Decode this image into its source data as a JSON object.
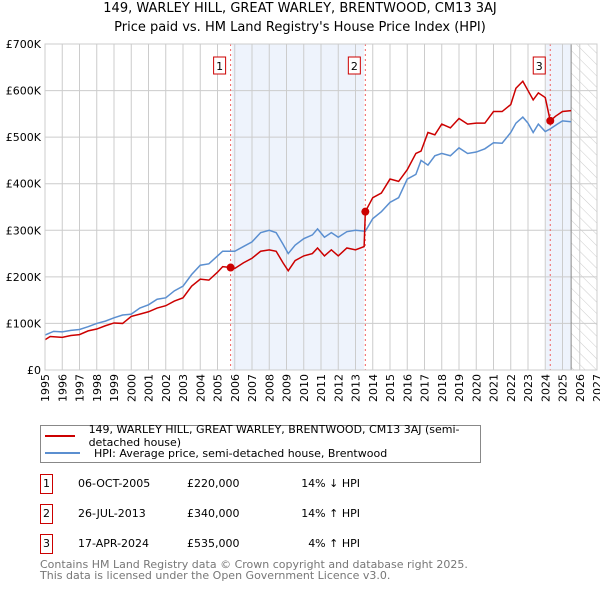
{
  "title": "149, WARLEY HILL, GREAT WARLEY, BRENTWOOD, CM13 3AJ",
  "subtitle": "Price paid vs. HM Land Registry's House Price Index (HPI)",
  "chart_data": {
    "type": "line",
    "xlim": [
      1995,
      2027
    ],
    "ylim": [
      0,
      700000
    ],
    "yticks": [
      {
        "v": 0,
        "l": "£0"
      },
      {
        "v": 100000,
        "l": "£100K"
      },
      {
        "v": 200000,
        "l": "£200K"
      },
      {
        "v": 300000,
        "l": "£300K"
      },
      {
        "v": 400000,
        "l": "£400K"
      },
      {
        "v": 500000,
        "l": "£500K"
      },
      {
        "v": 600000,
        "l": "£600K"
      },
      {
        "v": 700000,
        "l": "£700K"
      }
    ],
    "xticks": [
      "1995",
      "1996",
      "1997",
      "1998",
      "1999",
      "2000",
      "2001",
      "2002",
      "2003",
      "2004",
      "2005",
      "2006",
      "2007",
      "2008",
      "2009",
      "2010",
      "2011",
      "2012",
      "2013",
      "2014",
      "2015",
      "2016",
      "2017",
      "2018",
      "2019",
      "2020",
      "2021",
      "2022",
      "2023",
      "2024",
      "2025",
      "2026",
      "2027"
    ],
    "shaded_ranges": [
      [
        2005.85,
        2013.5
      ],
      [
        2024.05,
        2025.5
      ]
    ],
    "forecast_start": 2025.5,
    "series": [
      {
        "name": "149, WARLEY HILL, GREAT WARLEY, BRENTWOOD, CM13 3AJ (semi-detached house)",
        "color": "#cc0000",
        "x": [
          1995,
          1995.3,
          1996,
          1996.5,
          1997,
          1997.5,
          1998,
          1998.5,
          1999,
          1999.5,
          2000,
          2000.5,
          2001,
          2001.5,
          2002,
          2002.5,
          2003,
          2003.5,
          2004,
          2004.5,
          2005,
          2005.3,
          2005.76,
          2006,
          2006.5,
          2007,
          2007.5,
          2008,
          2008.4,
          2008.8,
          2009.1,
          2009.5,
          2010,
          2010.5,
          2010.8,
          2011.2,
          2011.6,
          2012,
          2012.5,
          2013,
          2013.5,
          2013.57,
          2014,
          2014.5,
          2015,
          2015.5,
          2016,
          2016.5,
          2016.8,
          2017.2,
          2017.6,
          2018,
          2018.5,
          2019,
          2019.5,
          2020,
          2020.5,
          2021,
          2021.5,
          2022,
          2022.3,
          2022.7,
          2023,
          2023.3,
          2023.6,
          2024,
          2024.29,
          2024.6,
          2025,
          2025.5
        ],
        "y": [
          65000,
          72000,
          70000,
          74000,
          76000,
          84000,
          88000,
          95000,
          101000,
          100000,
          115000,
          120000,
          125000,
          133000,
          138000,
          148000,
          155000,
          180000,
          195000,
          193000,
          210000,
          222000,
          220000,
          218000,
          230000,
          240000,
          255000,
          258000,
          255000,
          230000,
          213000,
          235000,
          245000,
          250000,
          262000,
          245000,
          258000,
          245000,
          262000,
          258000,
          265000,
          340000,
          370000,
          380000,
          410000,
          405000,
          430000,
          465000,
          470000,
          510000,
          505000,
          528000,
          520000,
          540000,
          528000,
          530000,
          530000,
          555000,
          555000,
          570000,
          605000,
          620000,
          600000,
          580000,
          595000,
          585000,
          535000,
          545000,
          555000,
          557000
        ]
      },
      {
        "name": "HPI: Average price, semi-detached house, Brentwood",
        "color": "#5b8fd0",
        "x": [
          1995,
          1995.5,
          1996,
          1996.5,
          1997,
          1997.5,
          1998,
          1998.5,
          1999,
          1999.5,
          2000,
          2000.5,
          2001,
          2001.5,
          2002,
          2002.5,
          2003,
          2003.5,
          2004,
          2004.5,
          2005,
          2005.3,
          2005.76,
          2006,
          2006.5,
          2007,
          2007.5,
          2008,
          2008.4,
          2008.8,
          2009.1,
          2009.5,
          2010,
          2010.5,
          2010.8,
          2011.2,
          2011.6,
          2012,
          2012.5,
          2013,
          2013.57,
          2014,
          2014.5,
          2015,
          2015.5,
          2016,
          2016.5,
          2016.8,
          2017.2,
          2017.6,
          2018,
          2018.5,
          2019,
          2019.5,
          2020,
          2020.5,
          2021,
          2021.5,
          2022,
          2022.3,
          2022.7,
          2023,
          2023.3,
          2023.6,
          2024,
          2024.3,
          2024.7,
          2025,
          2025.5
        ],
        "y": [
          75000,
          83000,
          82000,
          85000,
          87000,
          93000,
          100000,
          105000,
          112000,
          118000,
          120000,
          133000,
          140000,
          152000,
          155000,
          170000,
          180000,
          205000,
          225000,
          228000,
          245000,
          255000,
          255000,
          255000,
          265000,
          275000,
          295000,
          300000,
          295000,
          270000,
          250000,
          268000,
          282000,
          290000,
          303000,
          285000,
          295000,
          285000,
          297000,
          300000,
          298000,
          325000,
          340000,
          360000,
          370000,
          410000,
          420000,
          450000,
          440000,
          460000,
          465000,
          460000,
          477000,
          465000,
          468000,
          475000,
          488000,
          487000,
          510000,
          530000,
          543000,
          530000,
          510000,
          528000,
          512000,
          518000,
          528000,
          535000,
          533000
        ]
      }
    ],
    "sales": [
      {
        "label": "1",
        "date": "06-OCT-2005",
        "x": 2005.76,
        "price": "£220,000",
        "value": 220000,
        "hpi": "14% ↓ HPI"
      },
      {
        "label": "2",
        "date": "26-JUL-2013",
        "x": 2013.57,
        "price": "£340,000",
        "value": 340000,
        "hpi": "14% ↑ HPI"
      },
      {
        "label": "3",
        "date": "17-APR-2024",
        "x": 2024.29,
        "price": "£535,000",
        "value": 535000,
        "hpi": "4% ↑ HPI"
      }
    ]
  },
  "footer": [
    "Contains HM Land Registry data © Crown copyright and database right 2025.",
    "This data is licensed under the Open Government Licence v3.0."
  ]
}
